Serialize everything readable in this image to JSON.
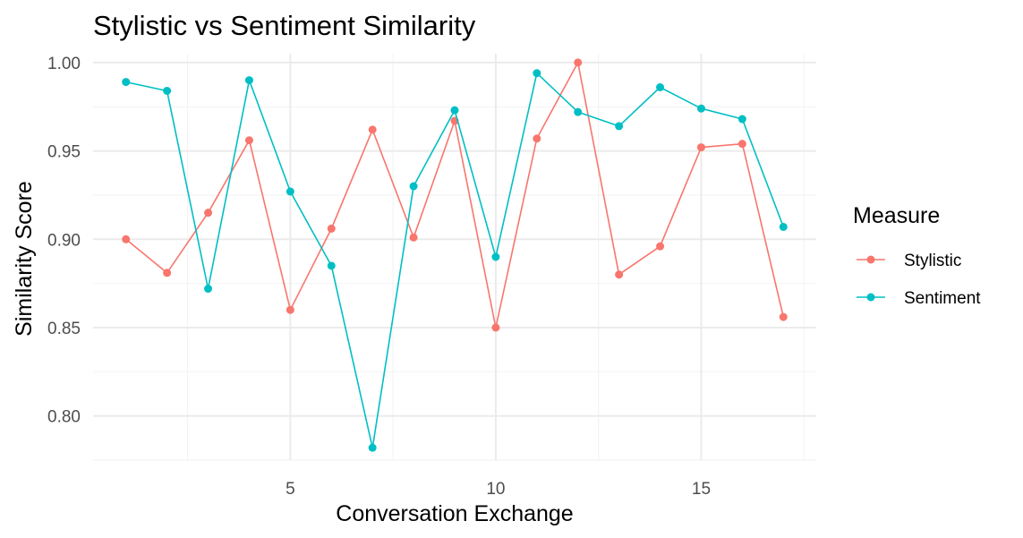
{
  "chart_data": {
    "type": "line",
    "title": "Stylistic vs Sentiment Similarity",
    "xlabel": "Conversation Exchange",
    "ylabel": "Similarity Score",
    "xlim": [
      0.2,
      17.8
    ],
    "ylim": [
      0.775,
      1.005
    ],
    "x_ticks": [
      5,
      10,
      15
    ],
    "x_tick_labels": [
      "5",
      "10",
      "15"
    ],
    "y_ticks": [
      0.8,
      0.85,
      0.9,
      0.95,
      1.0
    ],
    "y_tick_labels": [
      "0.80",
      "0.85",
      "0.90",
      "0.95",
      "1.00"
    ],
    "grid": true,
    "legend": {
      "title": "Measure",
      "position": "right"
    },
    "x": [
      1,
      2,
      3,
      4,
      5,
      6,
      7,
      8,
      9,
      10,
      11,
      12,
      13,
      14,
      15,
      16,
      17
    ],
    "series": [
      {
        "name": "Stylistic",
        "color": "#F8766D",
        "values": [
          0.9,
          0.881,
          0.915,
          0.956,
          0.86,
          0.906,
          0.962,
          0.901,
          0.967,
          0.85,
          0.957,
          1.0,
          0.88,
          0.896,
          0.952,
          0.954,
          0.856
        ]
      },
      {
        "name": "Sentiment",
        "color": "#00BFC4",
        "values": [
          0.989,
          0.984,
          0.872,
          0.99,
          0.927,
          0.885,
          0.782,
          0.93,
          0.973,
          0.89,
          0.994,
          0.972,
          0.964,
          0.986,
          0.974,
          0.968,
          0.907
        ]
      }
    ]
  }
}
